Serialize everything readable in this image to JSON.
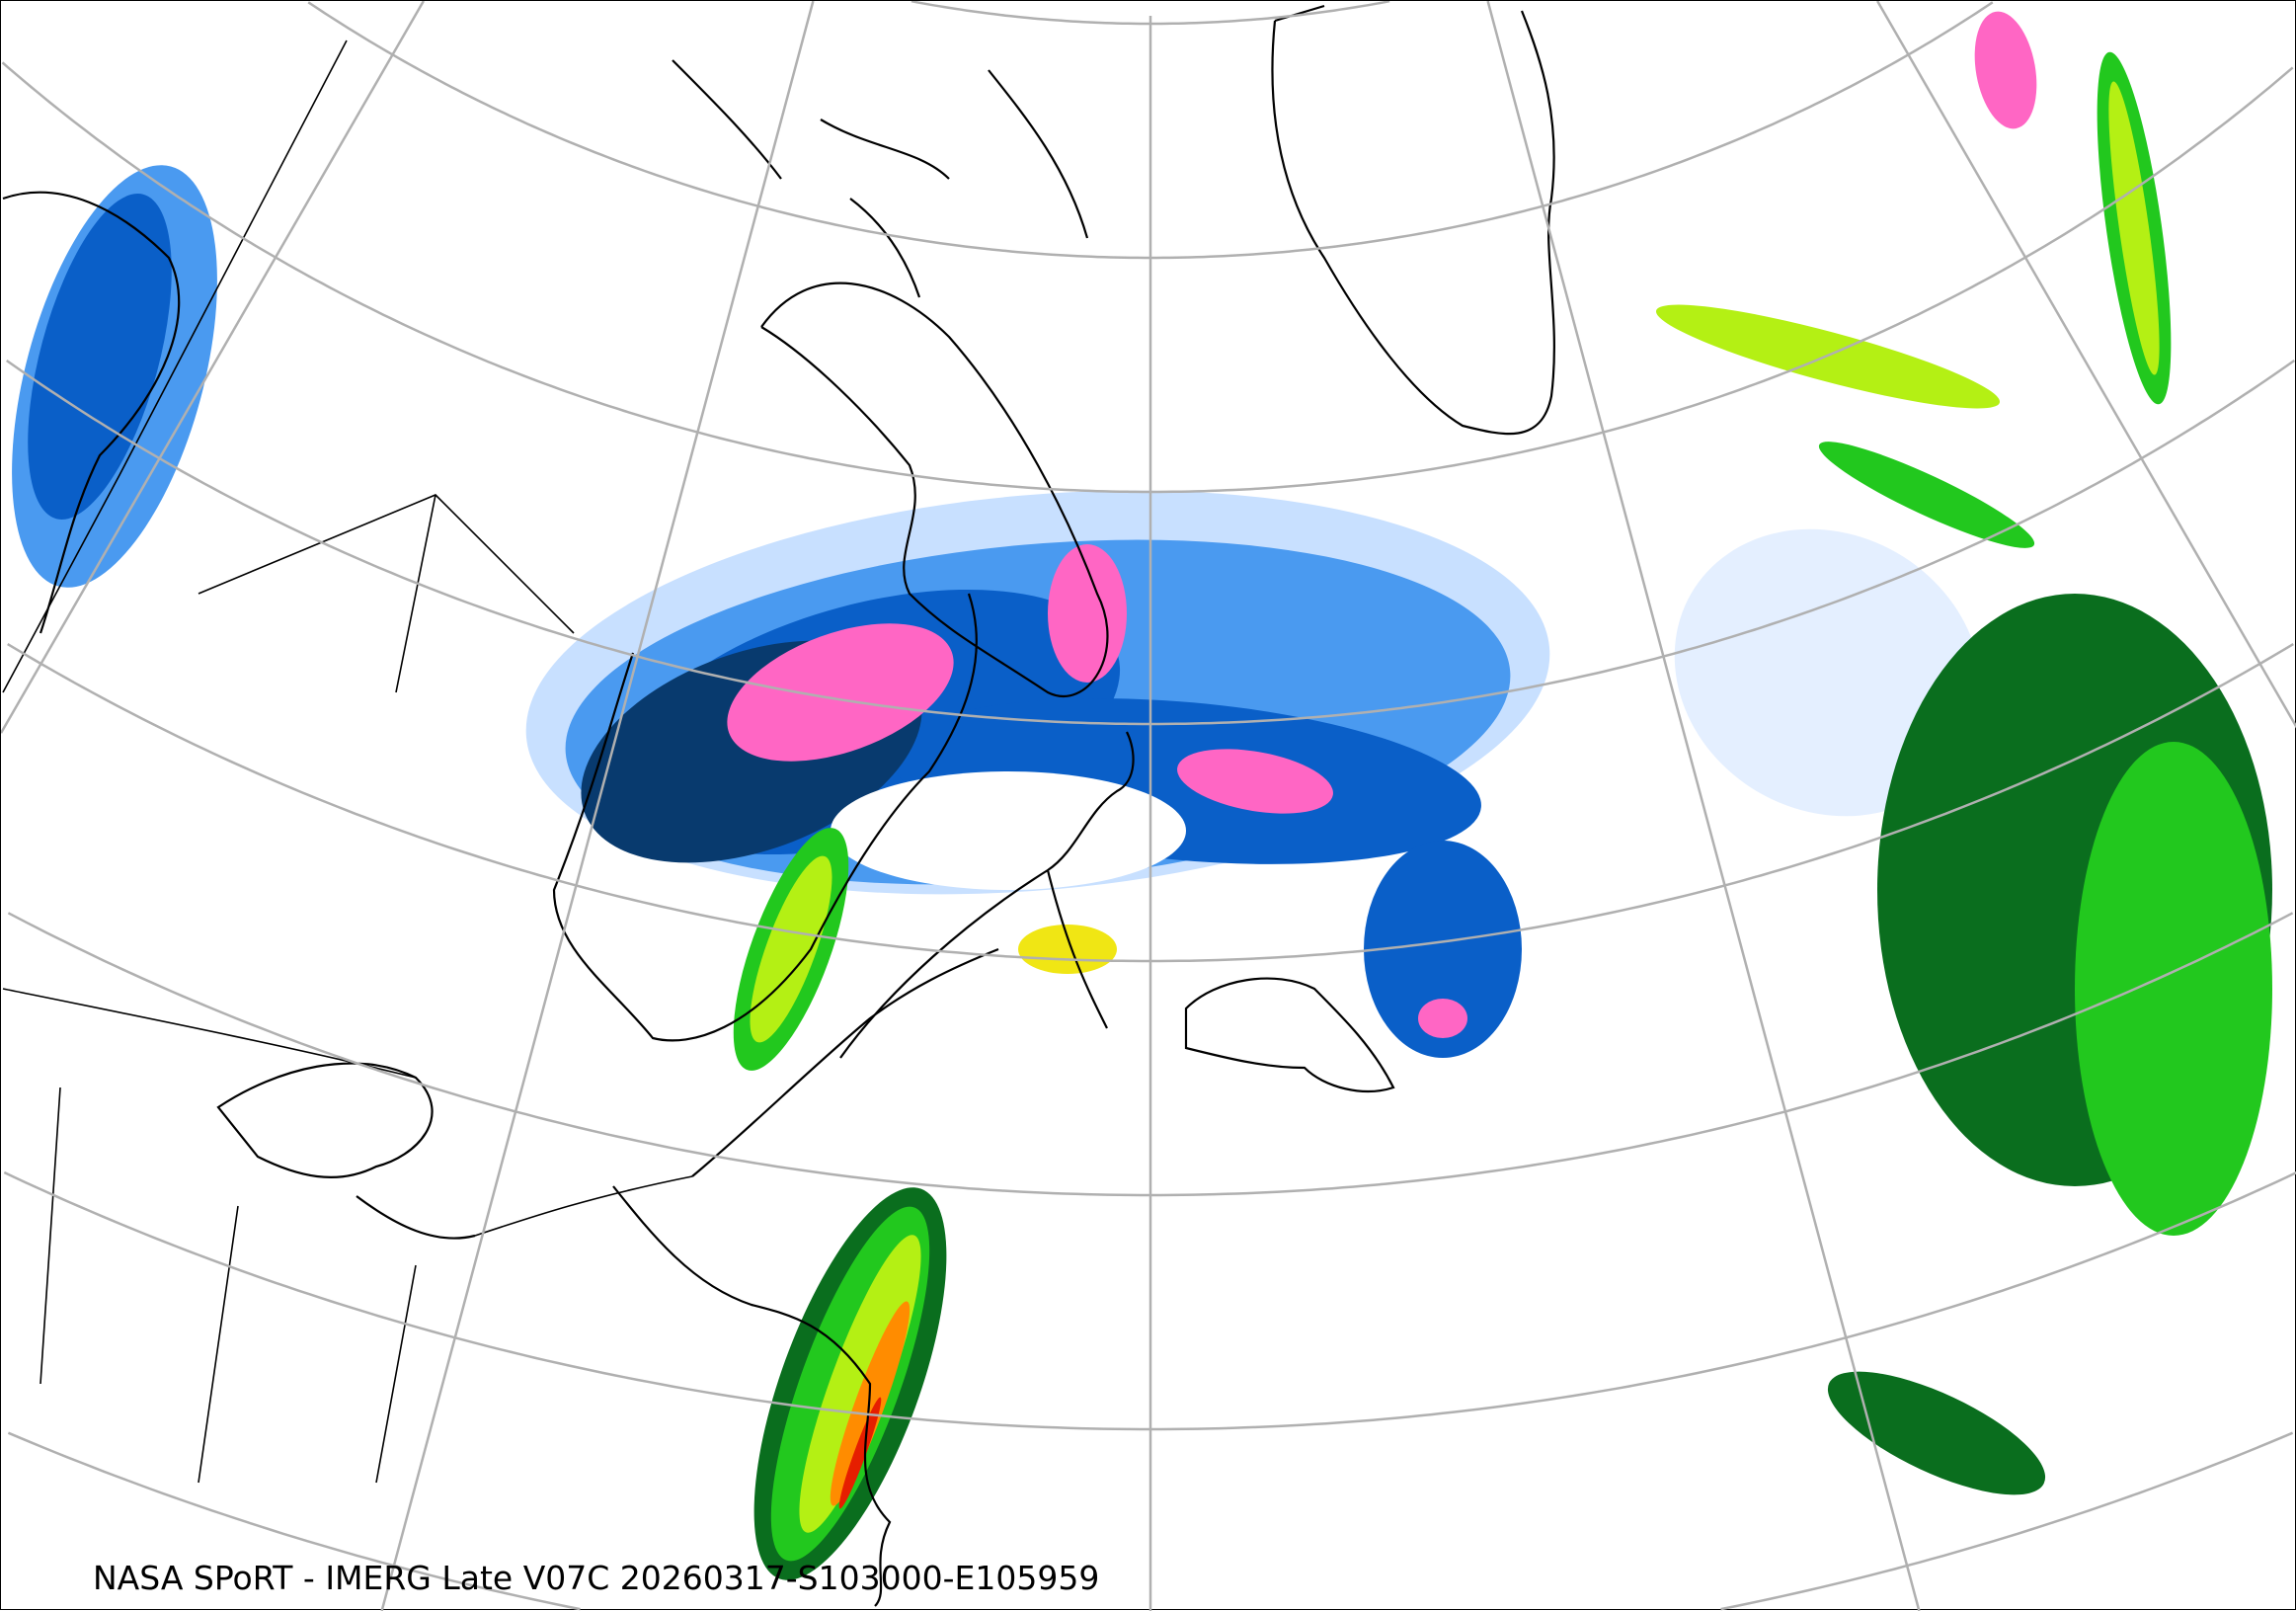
{
  "caption": "NASA SPoRT - IMERG Late V07C 20260317-S103000-E105959",
  "colors": {
    "graticule": "#b0b0b0",
    "coastline": "#000000",
    "snow_light": "#c8e0ff",
    "snow_mid": "#4a9af0",
    "snow_heavy": "#0a5fc8",
    "snow_very_heavy": "#083a6e",
    "mixed": "#ff66c4",
    "rain_light": "#0a6e1e",
    "rain_mid": "#22c81e",
    "rain_heavy": "#b4f014",
    "rain_very_heavy": "#f0e614",
    "rain_extreme": "#ff8c00",
    "rain_max": "#e61e00"
  }
}
